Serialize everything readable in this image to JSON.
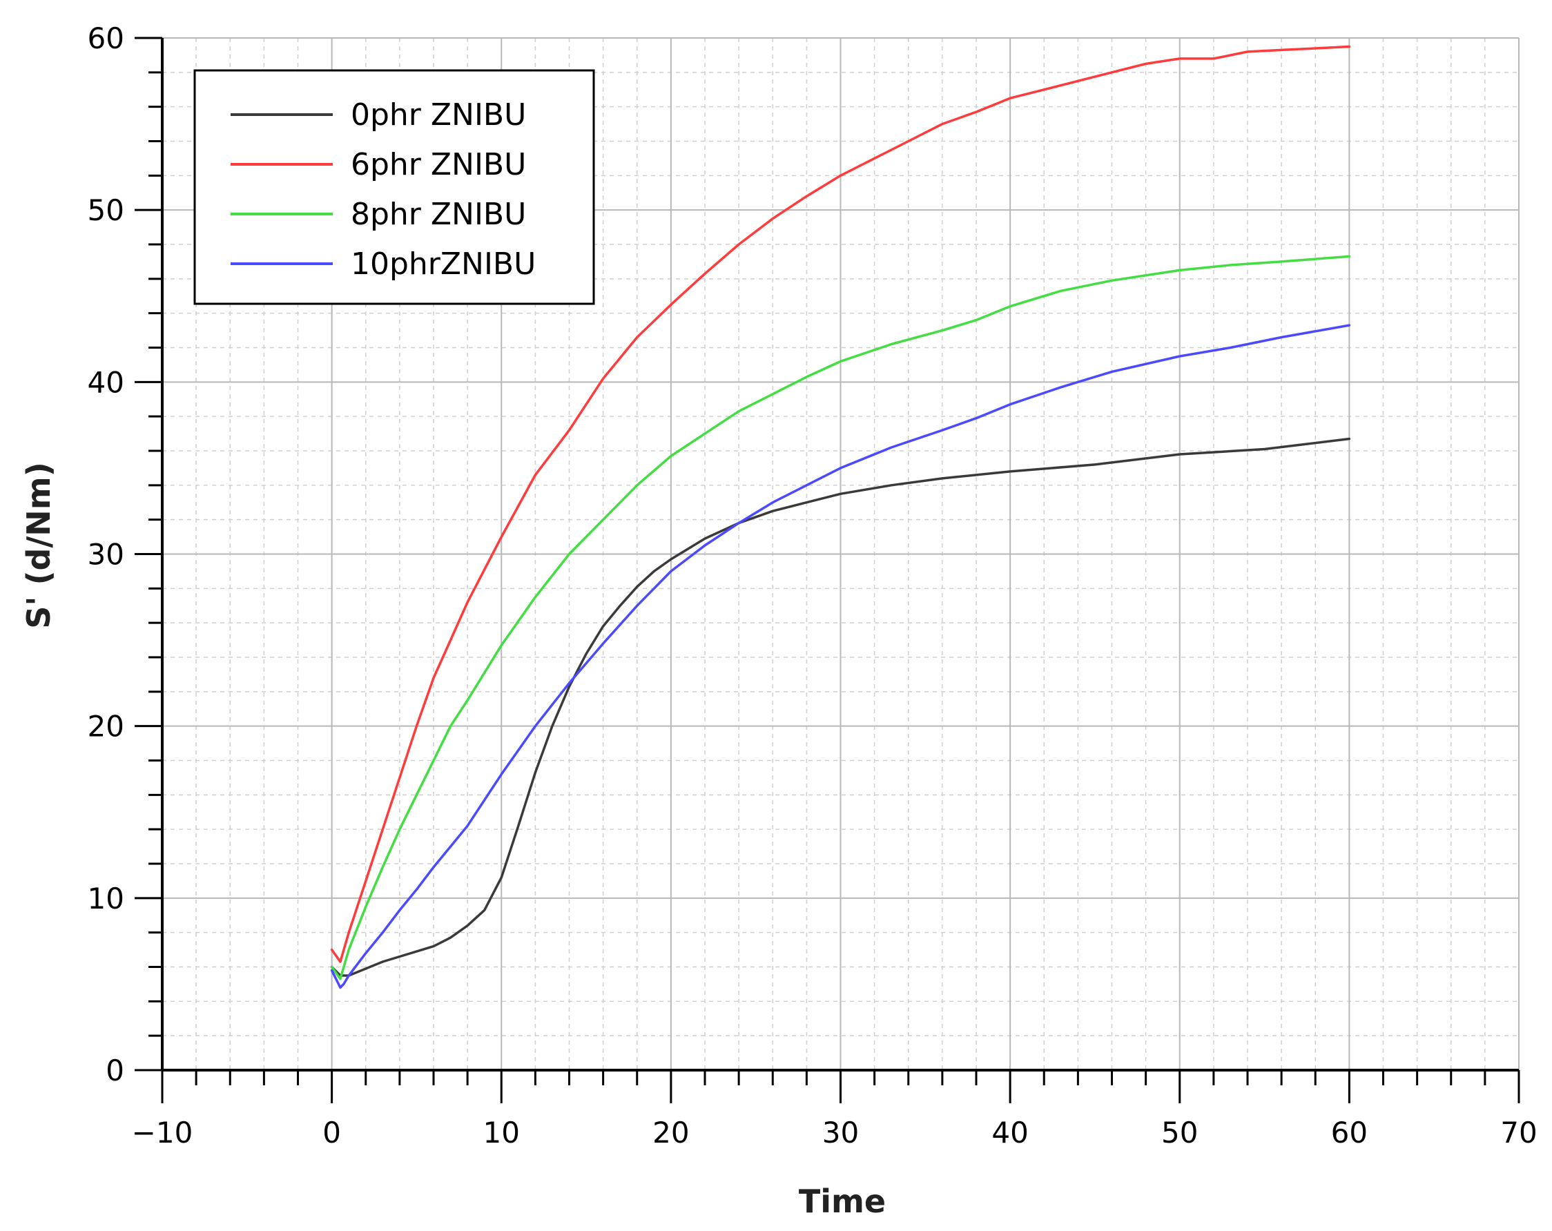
{
  "chart_data": {
    "type": "line",
    "title": "",
    "xlabel": "Time",
    "ylabel": "S' (d/Nm)",
    "xlim": [
      -10,
      70
    ],
    "ylim": [
      0,
      60
    ],
    "xticks": [
      -10,
      0,
      10,
      20,
      30,
      40,
      50,
      60,
      70
    ],
    "yticks": [
      0,
      10,
      20,
      30,
      40,
      50,
      60
    ],
    "xtick_labels": [
      "−10",
      "0",
      "10",
      "20",
      "30",
      "40",
      "50",
      "60",
      "70"
    ],
    "ytick_labels": [
      "0",
      "10",
      "20",
      "30",
      "40",
      "50",
      "60"
    ],
    "grid": true,
    "legend_position": "top-left",
    "series": [
      {
        "name": "0phr ZNIBU",
        "color": "#3a3a3a",
        "x": [
          0,
          0.5,
          1,
          2,
          3,
          4,
          5,
          6,
          7,
          8,
          9,
          10,
          11,
          12,
          13,
          14,
          15,
          16,
          17,
          18,
          19,
          20,
          22,
          24,
          26,
          28,
          30,
          33,
          36,
          40,
          45,
          50,
          55,
          60
        ],
        "y": [
          6.0,
          5.5,
          5.5,
          5.9,
          6.3,
          6.6,
          6.9,
          7.2,
          7.7,
          8.4,
          9.3,
          11.2,
          14.2,
          17.3,
          20.0,
          22.3,
          24.2,
          25.8,
          27.0,
          28.1,
          29.0,
          29.7,
          30.9,
          31.8,
          32.5,
          33.0,
          33.5,
          34.0,
          34.4,
          34.8,
          35.2,
          35.8,
          36.1,
          36.7
        ]
      },
      {
        "name": "6phr ZNIBU",
        "color": "#ff3b3b",
        "x": [
          0,
          0.5,
          1,
          2,
          3,
          4,
          5,
          6,
          7,
          8,
          10,
          12,
          14,
          16,
          18,
          20,
          22,
          24,
          26,
          28,
          30,
          32,
          34,
          36,
          38,
          40,
          42,
          44,
          46,
          48,
          50,
          52,
          54,
          56,
          58,
          60
        ],
        "y": [
          7.0,
          6.3,
          8.0,
          11.0,
          14.0,
          17.0,
          20.0,
          22.8,
          25.0,
          27.2,
          31.0,
          34.6,
          37.2,
          40.2,
          42.6,
          44.5,
          46.3,
          48.0,
          49.5,
          50.8,
          52.0,
          53.0,
          54.0,
          55.0,
          55.7,
          56.5,
          57.0,
          57.5,
          58.0,
          58.5,
          58.8,
          58.8,
          59.2,
          59.3,
          59.4,
          59.5
        ]
      },
      {
        "name": "8phr ZNIBU",
        "color": "#44dd44",
        "x": [
          0,
          0.5,
          1,
          2,
          3,
          4,
          5,
          6,
          7,
          8,
          10,
          12,
          14,
          16,
          18,
          20,
          22,
          24,
          26,
          28,
          30,
          33,
          36,
          38,
          40,
          43,
          46,
          50,
          53,
          56,
          60
        ],
        "y": [
          6.0,
          5.3,
          7.0,
          9.5,
          11.8,
          14.0,
          16.0,
          18.0,
          20.0,
          21.5,
          24.7,
          27.5,
          30.0,
          32.0,
          34.0,
          35.7,
          37.0,
          38.3,
          39.3,
          40.3,
          41.2,
          42.2,
          43.0,
          43.6,
          44.4,
          45.3,
          45.9,
          46.5,
          46.8,
          47.0,
          47.3
        ]
      },
      {
        "name": "10phrZNIBU",
        "color": "#4a4aff",
        "x": [
          0,
          0.5,
          0.7,
          1,
          2,
          3,
          4,
          5,
          6,
          7,
          8,
          10,
          12,
          14,
          16,
          18,
          20,
          22,
          24,
          26,
          28,
          30,
          33,
          36,
          38,
          40,
          43,
          46,
          50,
          53,
          56,
          60
        ],
        "y": [
          5.8,
          4.8,
          5.0,
          5.5,
          6.8,
          8.0,
          9.3,
          10.5,
          11.8,
          13.0,
          14.2,
          17.2,
          20.0,
          22.5,
          24.8,
          27.0,
          29.0,
          30.5,
          31.8,
          33.0,
          34.0,
          35.0,
          36.2,
          37.2,
          37.9,
          38.7,
          39.7,
          40.6,
          41.5,
          42.0,
          42.6,
          43.3
        ]
      }
    ]
  }
}
